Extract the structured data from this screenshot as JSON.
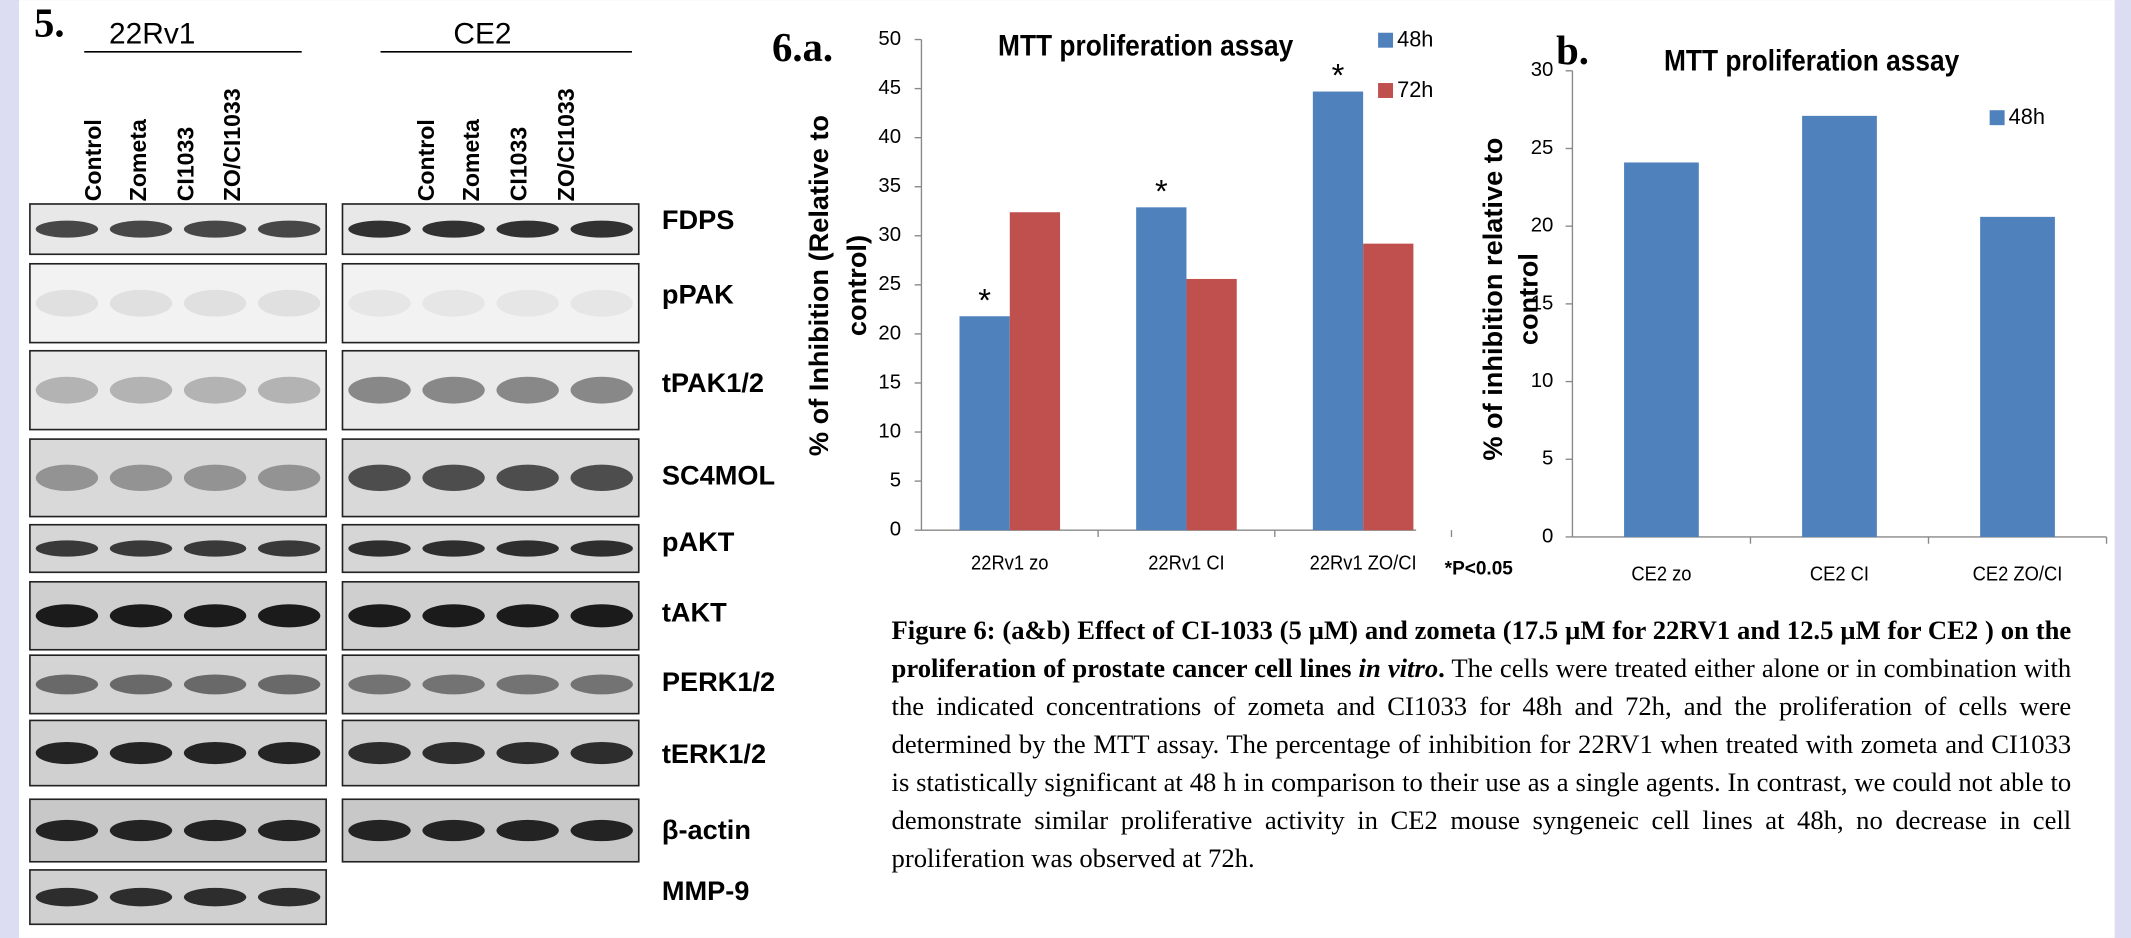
{
  "figure5": {
    "label": "5.",
    "groups": [
      {
        "name": "22Rv1",
        "lanes": [
          "Control",
          "Zometa",
          "CI1033",
          "ZO/CI1033"
        ]
      },
      {
        "name": "CE2",
        "lanes": [
          "Control",
          "Zometa",
          "CI1033",
          "ZO/CI1033"
        ]
      }
    ],
    "proteins": [
      "FDPS",
      "pPAK",
      "tPAK1/2",
      "SC4MOL",
      "pAKT",
      "tAKT",
      "PERK1/2",
      "tERK1/2",
      "β-actin",
      "MMP-9"
    ]
  },
  "chart_data": [
    {
      "type": "bar",
      "panel_label": "6.a.",
      "title": "MTT proliferation assay",
      "y_label": [
        "% of Inhibition (Relative to",
        "control)"
      ],
      "categories": [
        "22Rv1 zo",
        "22Rv1 CI",
        "22Rv1 ZO/CI"
      ],
      "series": [
        {
          "name": "48h",
          "color": "#4f81bd",
          "values": [
            21.8,
            32.9,
            44.7
          ]
        },
        {
          "name": "72h",
          "color": "#c0504d",
          "values": [
            32.4,
            25.6,
            29.2
          ]
        }
      ],
      "annotations": [
        "*",
        "*",
        "*",
        "*P<0.05"
      ],
      "ylim": [
        0,
        50
      ],
      "yticks": [
        0,
        5,
        10,
        15,
        20,
        25,
        30,
        35,
        40,
        45,
        50
      ],
      "grid": false
    },
    {
      "type": "bar",
      "panel_label": "b.",
      "title": "MTT proliferation assay",
      "y_label": [
        "% of inhibition relative to",
        "control"
      ],
      "categories": [
        "CE2 zo",
        "CE2 CI",
        "CE2 ZO/CI"
      ],
      "series": [
        {
          "name": "48h",
          "color": "#4f81bd",
          "values": [
            24.1,
            27.1,
            20.6
          ]
        }
      ],
      "ylim": [
        0,
        30
      ],
      "yticks": [
        0,
        5,
        10,
        15,
        20,
        25,
        30
      ],
      "grid": false
    }
  ],
  "caption": {
    "bold": "Figure 6: (a&b) Effect of CI-1033 (5 µM) and zometa (17.5 µM for 22RV1 and 12.5 µM for CE2 ) on the proliferation of prostate cancer cell lines ",
    "italic": "in vitro",
    "bold_end": ".",
    "text": " The cells were treated either alone or in combination with the indicated concentrations of zometa and CI1033 for 48h and 72h, and the proliferation of cells were determined by the MTT assay. The percentage of inhibition for 22RV1 when treated with zometa and CI1033 is statistically significant at 48 h in comparison to their use as a single agents. In contrast, we could not able to demonstrate similar proliferative activity in CE2 mouse syngeneic cell lines at 48h, no decrease in cell proliferation was observed at 72h."
  }
}
